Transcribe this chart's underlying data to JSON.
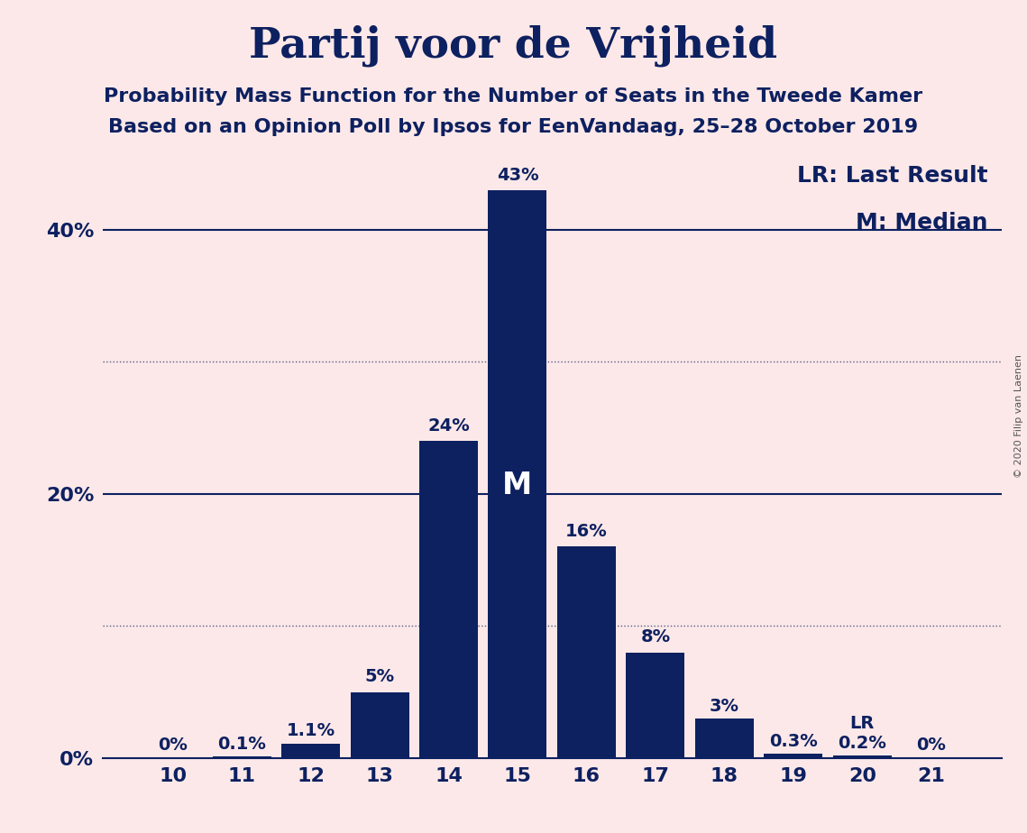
{
  "title": "Partij voor de Vrijheid",
  "subtitle1": "Probability Mass Function for the Number of Seats in the Tweede Kamer",
  "subtitle2": "Based on an Opinion Poll by Ipsos for EenVandaag, 25–28 October 2019",
  "copyright": "© 2020 Filip van Laenen",
  "categories": [
    10,
    11,
    12,
    13,
    14,
    15,
    16,
    17,
    18,
    19,
    20,
    21
  ],
  "values": [
    0.0,
    0.1,
    1.1,
    5.0,
    24.0,
    43.0,
    16.0,
    8.0,
    3.0,
    0.3,
    0.2,
    0.0
  ],
  "labels": [
    "0%",
    "0.1%",
    "1.1%",
    "5%",
    "24%",
    "43%",
    "16%",
    "8%",
    "3%",
    "0.3%",
    "0.2%",
    "0%"
  ],
  "bar_color": "#0d2060",
  "background_color": "#fce8e8",
  "median_seat": 15,
  "lr_seat": 20,
  "yticks": [
    0,
    20,
    40
  ],
  "ytick_labels": [
    "0%",
    "20%",
    "40%"
  ],
  "dotted_yticks": [
    10,
    30
  ],
  "solid_yticks": [
    20,
    40
  ],
  "ylim": [
    0,
    47
  ],
  "legend_text1": "LR: Last Result",
  "legend_text2": "M: Median",
  "title_fontsize": 34,
  "subtitle_fontsize": 16,
  "bar_label_fontsize": 14,
  "axis_label_fontsize": 16,
  "legend_fontsize": 18
}
